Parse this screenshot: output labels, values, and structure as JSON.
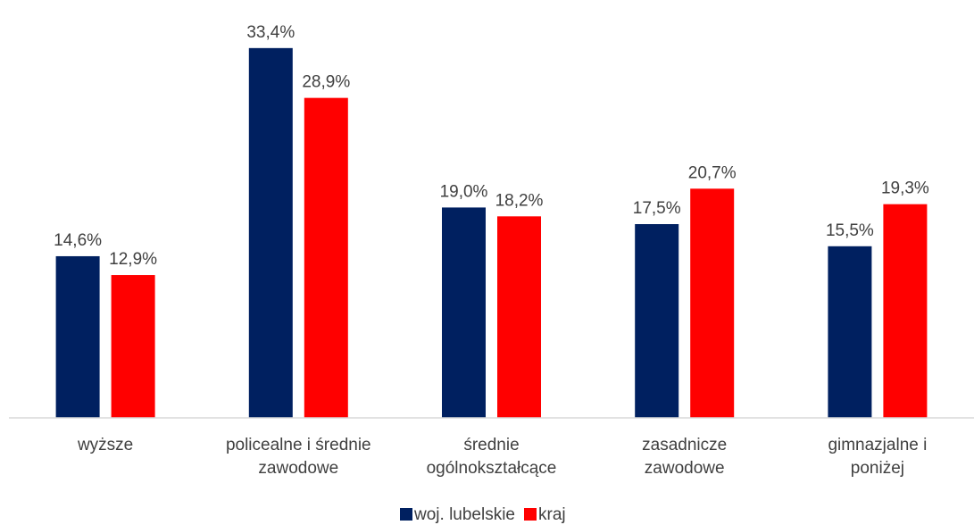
{
  "chart_data": {
    "type": "bar",
    "categories": [
      "wyższe",
      "policealne i średnie zawodowe",
      "średnie ogólnokształcące",
      "zasadnicze zawodowe",
      "gimnazjalne i poniżej"
    ],
    "series": [
      {
        "name": "woj. lubelskie",
        "color": "#002060",
        "values": [
          14.6,
          33.4,
          19.0,
          17.5,
          15.5
        ],
        "value_labels": [
          "14,6%",
          "33,4%",
          "19,0%",
          "17,5%",
          "15,5%"
        ]
      },
      {
        "name": "kraj",
        "color": "#ff0000",
        "values": [
          12.9,
          28.9,
          18.2,
          20.7,
          19.3
        ],
        "value_labels": [
          "12,9%",
          "28,9%",
          "18,2%",
          "20,7%",
          "19,3%"
        ]
      }
    ],
    "ylim": [
      0,
      35
    ],
    "legend": "bottom"
  }
}
